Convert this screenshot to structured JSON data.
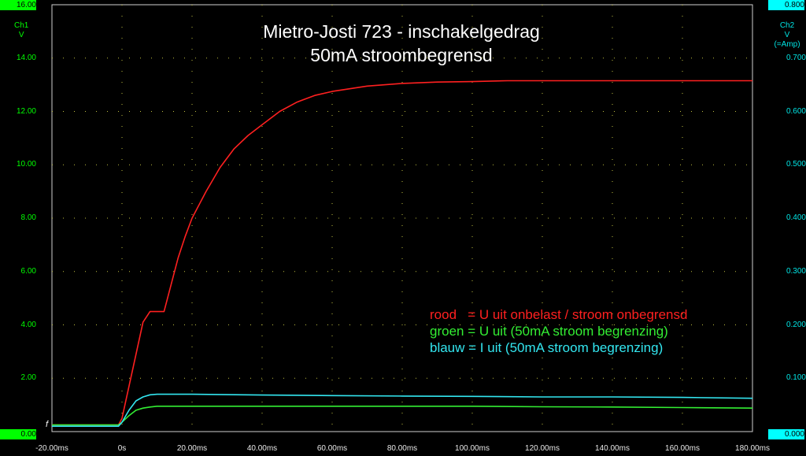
{
  "title_line1": "Mietro-Josti 723 - inschakelgedrag",
  "title_line2": "50mA stroombegrensd",
  "ch1": {
    "name": "Ch1",
    "unit": "V",
    "top_value": "16.00",
    "bottom_value": "0.00",
    "color": "#00ff00"
  },
  "ch2": {
    "name": "Ch2",
    "unit": "V",
    "note": "(=Amp)",
    "top_value": "0.800",
    "bottom_value": "0.000",
    "color": "#00ffff"
  },
  "trigger_marker": "f",
  "legend": [
    {
      "text": "rood   = U uit onbelast / stroom onbegrensd",
      "color": "#ff2020"
    },
    {
      "text": "groen = U uit (50mA stroom begrenzing)",
      "color": "#33ee33"
    },
    {
      "text": "blauw = I uit (50mA stroom begrenzing)",
      "color": "#33e6f0"
    }
  ],
  "chart_data": {
    "type": "line",
    "title": "Mietro-Josti 723 - inschakelgedrag",
    "subtitle": "50mA stroombegrensd",
    "x_unit": "ms",
    "xlim": [
      -20,
      180
    ],
    "ylim_left": [
      0,
      16
    ],
    "ylim_right": [
      0,
      0.8
    ],
    "x_ticks": [
      "-20.00ms",
      "0s",
      "20.00ms",
      "40.00ms",
      "60.00ms",
      "80.00ms",
      "100.00ms",
      "120.00ms",
      "140.00ms",
      "160.00ms",
      "180.00ms"
    ],
    "y_ticks_left": [
      "16.00",
      "14.00",
      "12.00",
      "10.00",
      "8.00",
      "6.00",
      "4.00",
      "2.00",
      "0.00"
    ],
    "y_ticks_right": [
      "0.800",
      "0.700",
      "0.600",
      "0.500",
      "0.400",
      "0.300",
      "0.200",
      "0.100",
      "0.000"
    ],
    "grid": true,
    "legend_position": "right, middle",
    "series": [
      {
        "name": "rood",
        "color": "#ff2020",
        "axis": "left",
        "x": [
          -20,
          -5,
          -1,
          0,
          2,
          4,
          6,
          8,
          10,
          12,
          14,
          16,
          18,
          20,
          24,
          28,
          32,
          36,
          40,
          45,
          50,
          55,
          60,
          65,
          70,
          80,
          90,
          100,
          110,
          120,
          140,
          160,
          180
        ],
        "y": [
          0.25,
          0.25,
          0.25,
          0.5,
          1.7,
          2.9,
          4.1,
          4.5,
          4.5,
          4.5,
          5.5,
          6.5,
          7.3,
          8.0,
          9.0,
          9.9,
          10.6,
          11.1,
          11.5,
          12.0,
          12.35,
          12.6,
          12.75,
          12.85,
          12.95,
          13.05,
          13.1,
          13.12,
          13.15,
          13.15,
          13.15,
          13.15,
          13.15
        ]
      },
      {
        "name": "groen",
        "color": "#33ee33",
        "axis": "left",
        "x": [
          -20,
          -5,
          -1,
          0,
          2,
          4,
          6,
          8,
          10,
          15,
          20,
          40,
          60,
          80,
          100,
          120,
          140,
          160,
          180
        ],
        "y": [
          0.25,
          0.25,
          0.25,
          0.35,
          0.6,
          0.8,
          0.88,
          0.92,
          0.95,
          0.95,
          0.95,
          0.95,
          0.95,
          0.95,
          0.95,
          0.93,
          0.92,
          0.9,
          0.88
        ]
      },
      {
        "name": "blauw",
        "color": "#33e6f0",
        "axis": "left",
        "x": [
          -20,
          -5,
          -1,
          0,
          2,
          4,
          6,
          8,
          10,
          15,
          20,
          40,
          60,
          80,
          100,
          120,
          140,
          160,
          180
        ],
        "y": [
          0.2,
          0.2,
          0.2,
          0.35,
          0.8,
          1.15,
          1.3,
          1.38,
          1.4,
          1.4,
          1.4,
          1.37,
          1.35,
          1.33,
          1.32,
          1.3,
          1.3,
          1.28,
          1.25
        ]
      }
    ]
  }
}
